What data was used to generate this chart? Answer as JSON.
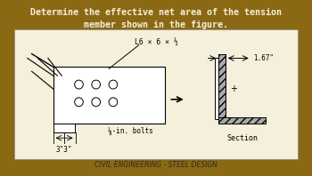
{
  "bg_color": "#8B6914",
  "card_color": "#F5F0DC",
  "title_text": "Determine the effective net area of the tension\nmember shown in the figure.",
  "title_color": "#F5F0DC",
  "title_fontsize": 7.2,
  "label_L6": "L6 × 6 × ½",
  "label_bolts": "⅛-in. bolts",
  "label_section": "Section",
  "label_167": "1.67\"",
  "label_3_3": "3\"3\"",
  "footer_text": "CIVIL ENGINEERING - STEEL DESIGN",
  "footer_color": "#2a2a2a",
  "card_bg": "#f5f0dc",
  "stripe_color": "#c8b99a"
}
